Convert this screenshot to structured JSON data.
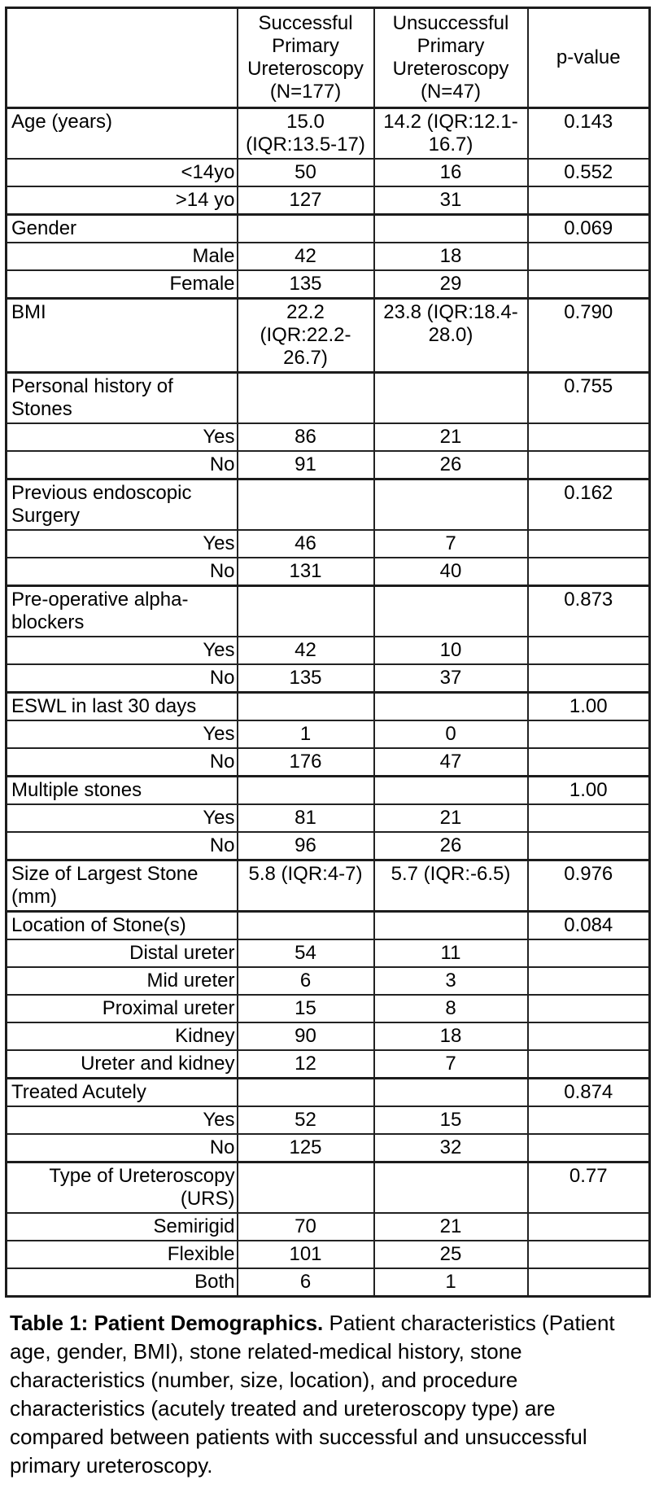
{
  "table": {
    "header": {
      "col_label": "",
      "col_successful": "Successful Primary Ureteroscopy (N=177)",
      "col_unsuccessful": "Unsuccessful Primary Ureteroscopy (N=47)",
      "col_pvalue": "p-value"
    },
    "rows": [
      {
        "label": "Age (years)",
        "align": "left",
        "section": true,
        "successful": "15.0 (IQR:13.5-17)",
        "unsuccessful": "14.2 (IQR:12.1-16.7)",
        "pvalue": "0.143"
      },
      {
        "label": "<14yo",
        "align": "right",
        "section": false,
        "successful": "50",
        "unsuccessful": "16",
        "pvalue": "0.552"
      },
      {
        "label": ">14 yo",
        "align": "right",
        "section": false,
        "successful": "127",
        "unsuccessful": "31",
        "pvalue": ""
      },
      {
        "label": "Gender",
        "align": "left",
        "section": true,
        "successful": "",
        "unsuccessful": "",
        "pvalue": "0.069"
      },
      {
        "label": "Male",
        "align": "right",
        "section": false,
        "successful": "42",
        "unsuccessful": "18",
        "pvalue": ""
      },
      {
        "label": "Female",
        "align": "right",
        "section": false,
        "successful": "135",
        "unsuccessful": "29",
        "pvalue": ""
      },
      {
        "label": "BMI",
        "align": "left",
        "section": true,
        "successful": "22.2 (IQR:22.2-26.7)",
        "unsuccessful": "23.8 (IQR:18.4-28.0)",
        "pvalue": "0.790"
      },
      {
        "label": "Personal history of Stones",
        "align": "left",
        "section": true,
        "successful": "",
        "unsuccessful": "",
        "pvalue": "0.755"
      },
      {
        "label": "Yes",
        "align": "right",
        "section": false,
        "successful": "86",
        "unsuccessful": "21",
        "pvalue": ""
      },
      {
        "label": "No",
        "align": "right",
        "section": false,
        "successful": "91",
        "unsuccessful": "26",
        "pvalue": ""
      },
      {
        "label": "Previous endoscopic Surgery",
        "align": "left",
        "section": true,
        "successful": "",
        "unsuccessful": "",
        "pvalue": "0.162"
      },
      {
        "label": "Yes",
        "align": "right",
        "section": false,
        "successful": "46",
        "unsuccessful": "7",
        "pvalue": ""
      },
      {
        "label": "No",
        "align": "right",
        "section": false,
        "successful": "131",
        "unsuccessful": "40",
        "pvalue": ""
      },
      {
        "label": "Pre-operative alpha-blockers",
        "align": "left",
        "section": true,
        "successful": "",
        "unsuccessful": "",
        "pvalue": "0.873"
      },
      {
        "label": "Yes",
        "align": "right",
        "section": false,
        "successful": "42",
        "unsuccessful": "10",
        "pvalue": ""
      },
      {
        "label": "No",
        "align": "right",
        "section": false,
        "successful": "135",
        "unsuccessful": "37",
        "pvalue": ""
      },
      {
        "label": "ESWL in last 30 days",
        "align": "left",
        "section": true,
        "successful": "",
        "unsuccessful": "",
        "pvalue": "1.00"
      },
      {
        "label": "Yes",
        "align": "right",
        "section": false,
        "successful": "1",
        "unsuccessful": "0",
        "pvalue": ""
      },
      {
        "label": "No",
        "align": "right",
        "section": false,
        "successful": "176",
        "unsuccessful": "47",
        "pvalue": ""
      },
      {
        "label": "Multiple stones",
        "align": "left",
        "section": true,
        "successful": "",
        "unsuccessful": "",
        "pvalue": "1.00"
      },
      {
        "label": "Yes",
        "align": "right",
        "section": false,
        "successful": "81",
        "unsuccessful": "21",
        "pvalue": ""
      },
      {
        "label": "No",
        "align": "right",
        "section": false,
        "successful": "96",
        "unsuccessful": "26",
        "pvalue": ""
      },
      {
        "label": "Size of Largest Stone (mm)",
        "align": "left",
        "section": true,
        "successful": "5.8 (IQR:4-7)",
        "unsuccessful": "5.7 (IQR:-6.5)",
        "pvalue": "0.976"
      },
      {
        "label": "Location of Stone(s)",
        "align": "left",
        "section": true,
        "successful": "",
        "unsuccessful": "",
        "pvalue": "0.084"
      },
      {
        "label": "Distal ureter",
        "align": "right",
        "section": false,
        "successful": "54",
        "unsuccessful": "11",
        "pvalue": ""
      },
      {
        "label": "Mid ureter",
        "align": "right",
        "section": false,
        "successful": "6",
        "unsuccessful": "3",
        "pvalue": ""
      },
      {
        "label": "Proximal ureter",
        "align": "right",
        "section": false,
        "successful": "15",
        "unsuccessful": "8",
        "pvalue": ""
      },
      {
        "label": "Kidney",
        "align": "right",
        "section": false,
        "successful": "90",
        "unsuccessful": "18",
        "pvalue": ""
      },
      {
        "label": "Ureter and kidney",
        "align": "right",
        "section": false,
        "successful": "12",
        "unsuccessful": "7",
        "pvalue": ""
      },
      {
        "label": "Treated Acutely",
        "align": "left",
        "section": true,
        "successful": "",
        "unsuccessful": "",
        "pvalue": "0.874"
      },
      {
        "label": "Yes",
        "align": "right",
        "section": false,
        "successful": "52",
        "unsuccessful": "15",
        "pvalue": ""
      },
      {
        "label": "No",
        "align": "right",
        "section": false,
        "successful": "125",
        "unsuccessful": "32",
        "pvalue": ""
      },
      {
        "label": "Type of Ureteroscopy (URS)",
        "align": "right",
        "section": true,
        "successful": "",
        "unsuccessful": "",
        "pvalue": "0.77"
      },
      {
        "label": "Semirigid",
        "align": "right",
        "section": false,
        "successful": "70",
        "unsuccessful": "21",
        "pvalue": ""
      },
      {
        "label": "Flexible",
        "align": "right",
        "section": false,
        "successful": "101",
        "unsuccessful": "25",
        "pvalue": ""
      },
      {
        "label": "Both",
        "align": "right",
        "section": false,
        "successful": "6",
        "unsuccessful": "1",
        "pvalue": ""
      }
    ]
  },
  "caption": {
    "title": "Table 1: Patient Demographics.",
    "body": " Patient characteristics (Patient age, gender, BMI), stone related-medical history, stone characteristics (number, size, location), and procedure characteristics (acutely treated and ureteroscopy type) are compared between patients with successful and unsuccessful primary ureteroscopy."
  },
  "colors": {
    "text": "#000000",
    "border": "#1c1c1c",
    "background": "#ffffff"
  }
}
